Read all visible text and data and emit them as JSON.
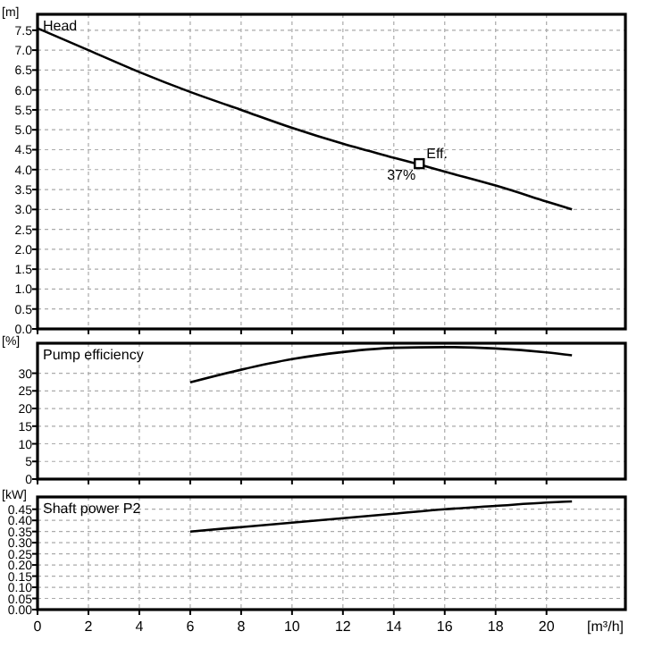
{
  "chart_data": [
    {
      "type": "line",
      "title": "Head",
      "ylabel": "[m]",
      "xlim": [
        0,
        23.1
      ],
      "xticks": [
        0,
        2,
        4,
        6,
        8,
        10,
        12,
        14,
        16,
        18,
        20
      ],
      "ylim": [
        0,
        7.9
      ],
      "yticks": [
        {
          "value": 0,
          "label": "0.0"
        },
        {
          "value": 0.5,
          "label": "0.5"
        },
        {
          "value": 1,
          "label": "1.0"
        },
        {
          "value": 1.5,
          "label": "1.5"
        },
        {
          "value": 2,
          "label": "2.0"
        },
        {
          "value": 2.5,
          "label": "2.5"
        },
        {
          "value": 3,
          "label": "3.0"
        },
        {
          "value": 3.5,
          "label": "3.5"
        },
        {
          "value": 4,
          "label": "4.0"
        },
        {
          "value": 4.5,
          "label": "4.5"
        },
        {
          "value": 5,
          "label": "5.0"
        },
        {
          "value": 5.5,
          "label": "5.5"
        },
        {
          "value": 6,
          "label": "6.0"
        },
        {
          "value": 6.5,
          "label": "6.5"
        },
        {
          "value": 7,
          "label": "7.0"
        },
        {
          "value": 7.5,
          "label": "7.5"
        }
      ],
      "grid": true,
      "tick_labels": "y",
      "x": [
        0,
        2,
        4,
        6,
        8,
        10,
        12,
        14,
        15,
        16,
        18,
        20,
        21
      ],
      "series": [
        {
          "color": "#000000",
          "values": [
            7.55,
            7.0,
            6.45,
            5.95,
            5.5,
            5.05,
            4.65,
            4.3,
            4.13,
            3.95,
            3.6,
            3.2,
            3.0
          ]
        },
        {
          "type": "scatter",
          "marker": "square",
          "color": "#000000",
          "x": [
            15
          ],
          "values": [
            4.15
          ]
        }
      ],
      "annotations": [
        {
          "text": "Eff.",
          "x": 15,
          "y": 4.15
        },
        {
          "text": "37%",
          "x": 15,
          "y": 4.15
        }
      ]
    },
    {
      "type": "line",
      "title": "Pump efficiency",
      "ylabel": "[%]",
      "xlim": [
        0,
        23.1
      ],
      "xticks": [
        0,
        2,
        4,
        6,
        8,
        10,
        12,
        14,
        16,
        18,
        20
      ],
      "ylim": [
        0,
        38.5
      ],
      "yticks": [
        0,
        5,
        10,
        15,
        20,
        25,
        30
      ],
      "grid": true,
      "tick_labels": "y",
      "x": [
        6,
        8,
        10,
        12,
        14,
        16,
        18,
        20,
        21
      ],
      "series": [
        {
          "color": "#000000",
          "values": [
            27.4,
            31,
            34,
            36,
            37.2,
            37.4,
            37,
            35.9,
            35.1
          ]
        }
      ]
    },
    {
      "type": "line",
      "title": "Shaft power P2",
      "ylabel": "[kW]",
      "xlabel": "[m³/h]",
      "xlim": [
        0,
        23.1
      ],
      "xticks": [
        0,
        2,
        4,
        6,
        8,
        10,
        12,
        14,
        16,
        18,
        20
      ],
      "ylim": [
        0,
        0.505
      ],
      "yticks": [
        {
          "value": 0,
          "label": "0.00"
        },
        {
          "value": 0.05,
          "label": "0.05"
        },
        {
          "value": 0.1,
          "label": "0.10"
        },
        {
          "value": 0.15,
          "label": "0.15"
        },
        {
          "value": 0.2,
          "label": "0.20"
        },
        {
          "value": 0.25,
          "label": "0.25"
        },
        {
          "value": 0.3,
          "label": "0.30"
        },
        {
          "value": 0.35,
          "label": "0.35"
        },
        {
          "value": 0.4,
          "label": "0.40"
        },
        {
          "value": 0.45,
          "label": "0.45"
        }
      ],
      "grid": true,
      "x": [
        6,
        8,
        10,
        12,
        14,
        16,
        18,
        20,
        21
      ],
      "series": [
        {
          "color": "#000000",
          "values": [
            0.35,
            0.37,
            0.39,
            0.41,
            0.43,
            0.45,
            0.465,
            0.48,
            0.485
          ]
        }
      ]
    }
  ]
}
